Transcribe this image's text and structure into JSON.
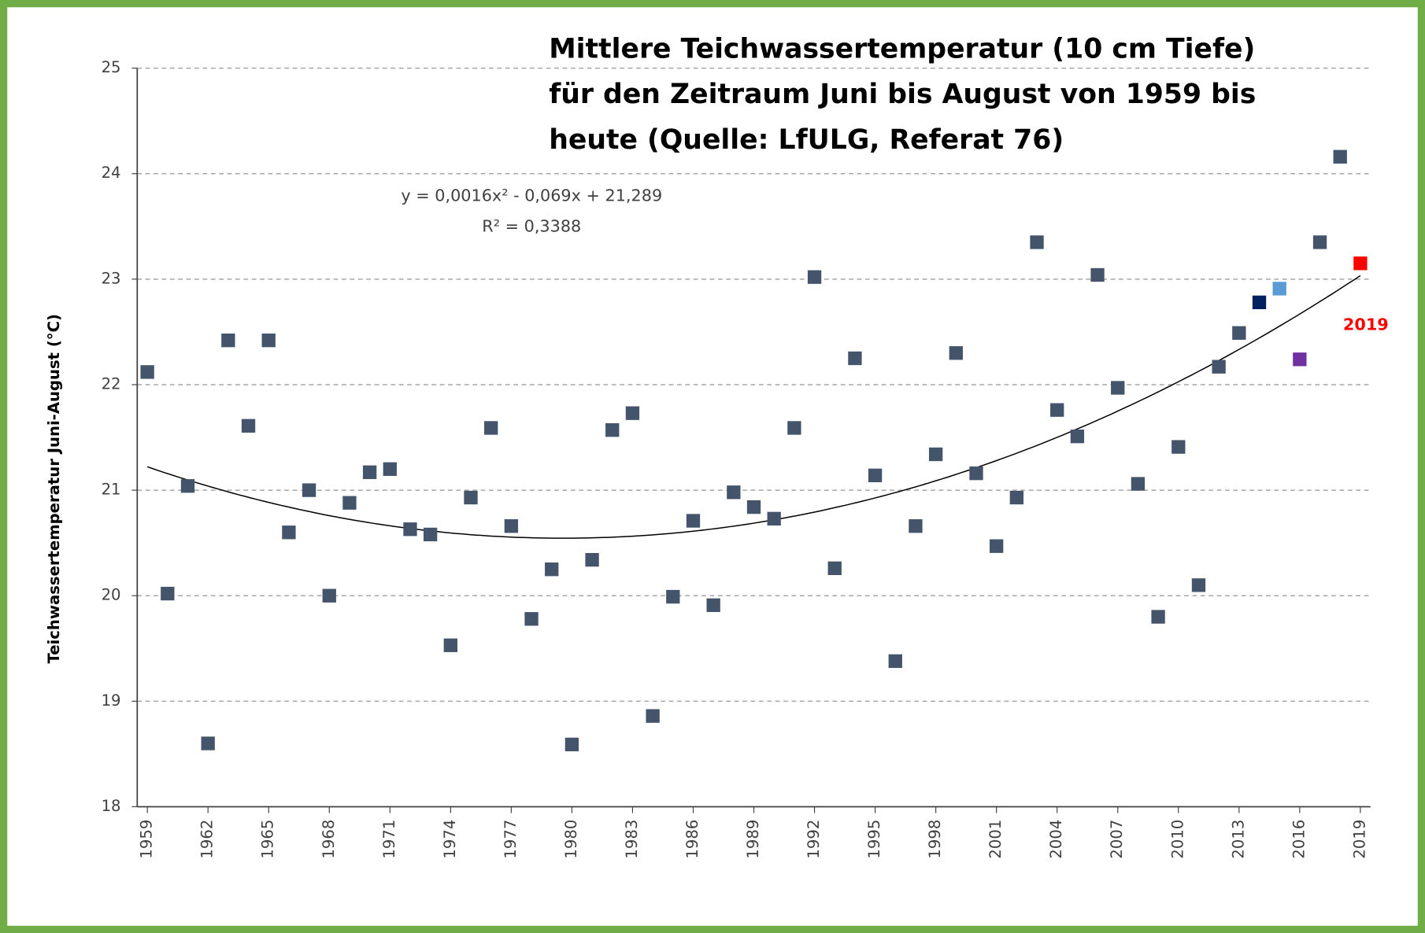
{
  "chart_data": {
    "type": "scatter",
    "title": [
      "Mittlere Teichwassertemperatur (10 cm Tiefe)",
      "für den Zeitraum Juni bis August von 1959 bis",
      "heute (Quelle: LfULG, Referat 76)"
    ],
    "y_label": "Teichwassertemperatur Juni-August (°C)",
    "x": [
      1959,
      1960,
      1961,
      1962,
      1963,
      1964,
      1965,
      1966,
      1967,
      1968,
      1969,
      1970,
      1971,
      1972,
      1973,
      1974,
      1975,
      1976,
      1977,
      1978,
      1979,
      1980,
      1981,
      1982,
      1983,
      1984,
      1985,
      1986,
      1987,
      1988,
      1989,
      1990,
      1991,
      1992,
      1993,
      1994,
      1995,
      1996,
      1997,
      1998,
      1999,
      2000,
      2001,
      2002,
      2003,
      2004,
      2005,
      2006,
      2007,
      2008,
      2009,
      2010,
      2011,
      2012,
      2013,
      2014,
      2015,
      2016,
      2017,
      2018,
      2019
    ],
    "values": [
      22.12,
      20.02,
      21.04,
      18.6,
      22.42,
      21.61,
      22.42,
      20.6,
      21.0,
      20.0,
      20.88,
      21.17,
      21.2,
      20.63,
      20.58,
      19.53,
      20.93,
      21.59,
      20.66,
      19.78,
      20.25,
      18.59,
      20.34,
      21.57,
      21.73,
      18.86,
      19.99,
      20.71,
      19.91,
      20.98,
      20.84,
      20.73,
      21.59,
      23.02,
      20.26,
      22.25,
      21.14,
      19.38,
      20.66,
      21.34,
      22.3,
      21.16,
      20.47,
      20.93,
      23.35,
      21.76,
      21.51,
      23.04,
      21.97,
      21.06,
      19.8,
      21.41,
      20.1,
      22.17,
      22.49,
      22.78,
      22.91,
      22.24,
      23.35,
      24.16,
      23.15
    ],
    "color": "#44546a",
    "point_colors": {
      "2014": "#002060",
      "2015": "#5b9bd5",
      "2016": "#7030a0",
      "2019": "#ff0000"
    },
    "xlim": [
      1958.5,
      2019.5
    ],
    "xticks": [
      1959,
      1962,
      1965,
      1968,
      1971,
      1974,
      1977,
      1980,
      1983,
      1986,
      1989,
      1992,
      1995,
      1998,
      2001,
      2004,
      2007,
      2010,
      2013,
      2016,
      2019
    ],
    "ylim": [
      18,
      25
    ],
    "yticks": [
      18,
      19,
      20,
      21,
      22,
      23,
      24,
      25
    ],
    "grid": true,
    "trendline": {
      "coefficients": [
        0.0016,
        -0.069,
        21.289
      ],
      "equation": "y = 0,0016x² - 0,069x + 21,289",
      "r2": "R² = 0,3388"
    },
    "annotation": {
      "text": "2019",
      "color": "#ff0000"
    }
  }
}
